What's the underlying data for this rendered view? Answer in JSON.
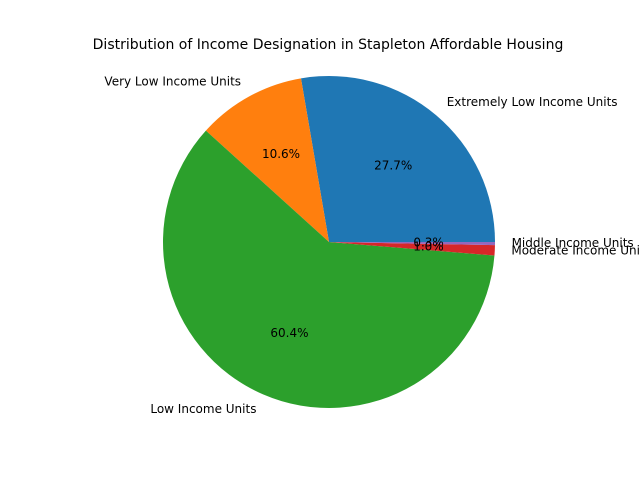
{
  "chart_data": {
    "type": "pie",
    "title": "Distribution of Income Designation in Stapleton Affordable Housing",
    "start_angle_deg": 0,
    "direction": "counterclockwise",
    "slices": [
      {
        "label": "Extremely Low Income Units",
        "value": 27.7,
        "pct_text": "27.7%",
        "color": "#1f77b4"
      },
      {
        "label": "Very Low Income Units",
        "value": 10.6,
        "pct_text": "10.6%",
        "color": "#ff7f0e"
      },
      {
        "label": "Low Income Units",
        "value": 60.4,
        "pct_text": "60.4%",
        "color": "#2ca02c"
      },
      {
        "label": "Moderate Income Units",
        "value": 1.0,
        "pct_text": "1.0%",
        "color": "#d62728"
      },
      {
        "label": "Middle Income Units",
        "value": 0.3,
        "pct_text": "0.3%",
        "color": "#9467bd"
      }
    ]
  }
}
